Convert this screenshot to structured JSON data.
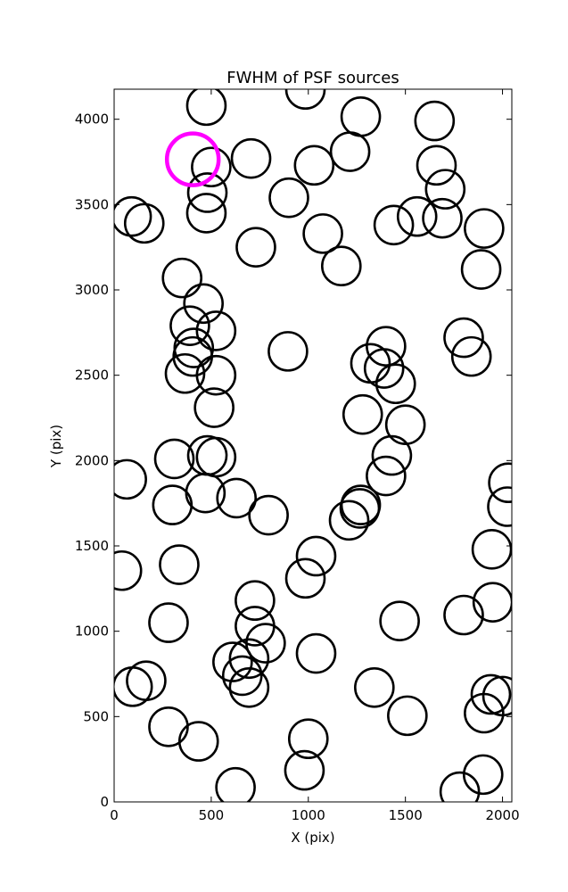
{
  "chart_data": {
    "type": "scatter",
    "title": "FWHM of PSF sources",
    "xlabel": "X (pix)",
    "ylabel": "Y (pix)",
    "xlim": [
      0,
      2048
    ],
    "ylim": [
      0,
      4176
    ],
    "xticks": [
      0,
      500,
      1000,
      1500,
      2000
    ],
    "yticks": [
      0,
      500,
      1000,
      1500,
      2000,
      2500,
      3000,
      3500,
      4000
    ],
    "grid": false,
    "marker": "circle",
    "colors": {
      "normal": "#000000",
      "highlight": "#ff00ff"
    },
    "highlight": {
      "x": 405,
      "y": 3765
    },
    "points": [
      {
        "x": 475,
        "y": 4080
      },
      {
        "x": 985,
        "y": 4175
      },
      {
        "x": 1270,
        "y": 4015
      },
      {
        "x": 1650,
        "y": 3990
      },
      {
        "x": 705,
        "y": 3770
      },
      {
        "x": 500,
        "y": 3720
      },
      {
        "x": 1030,
        "y": 3730
      },
      {
        "x": 1215,
        "y": 3810
      },
      {
        "x": 1660,
        "y": 3730
      },
      {
        "x": 480,
        "y": 3570
      },
      {
        "x": 475,
        "y": 3450
      },
      {
        "x": 900,
        "y": 3540
      },
      {
        "x": 90,
        "y": 3430
      },
      {
        "x": 155,
        "y": 3390
      },
      {
        "x": 1075,
        "y": 3330
      },
      {
        "x": 1440,
        "y": 3380
      },
      {
        "x": 1560,
        "y": 3430
      },
      {
        "x": 1705,
        "y": 3590
      },
      {
        "x": 1690,
        "y": 3420
      },
      {
        "x": 1905,
        "y": 3360
      },
      {
        "x": 730,
        "y": 3250
      },
      {
        "x": 1170,
        "y": 3140
      },
      {
        "x": 1890,
        "y": 3120
      },
      {
        "x": 350,
        "y": 3070
      },
      {
        "x": 460,
        "y": 2920
      },
      {
        "x": 390,
        "y": 2790
      },
      {
        "x": 525,
        "y": 2760
      },
      {
        "x": 410,
        "y": 2660
      },
      {
        "x": 405,
        "y": 2610
      },
      {
        "x": 365,
        "y": 2510
      },
      {
        "x": 525,
        "y": 2500
      },
      {
        "x": 895,
        "y": 2640
      },
      {
        "x": 1400,
        "y": 2670
      },
      {
        "x": 1320,
        "y": 2570
      },
      {
        "x": 1390,
        "y": 2540
      },
      {
        "x": 1450,
        "y": 2450
      },
      {
        "x": 1800,
        "y": 2720
      },
      {
        "x": 1840,
        "y": 2610
      },
      {
        "x": 515,
        "y": 2310
      },
      {
        "x": 1280,
        "y": 2270
      },
      {
        "x": 1500,
        "y": 2210
      },
      {
        "x": 310,
        "y": 2010
      },
      {
        "x": 480,
        "y": 2030
      },
      {
        "x": 525,
        "y": 2020
      },
      {
        "x": 1430,
        "y": 2030
      },
      {
        "x": 1400,
        "y": 1910
      },
      {
        "x": 65,
        "y": 1890
      },
      {
        "x": 2030,
        "y": 1870
      },
      {
        "x": 300,
        "y": 1740
      },
      {
        "x": 470,
        "y": 1810
      },
      {
        "x": 630,
        "y": 1780
      },
      {
        "x": 795,
        "y": 1680
      },
      {
        "x": 1270,
        "y": 1740
      },
      {
        "x": 1265,
        "y": 1720
      },
      {
        "x": 1210,
        "y": 1650
      },
      {
        "x": 2025,
        "y": 1730
      },
      {
        "x": 40,
        "y": 1355
      },
      {
        "x": 335,
        "y": 1390
      },
      {
        "x": 1040,
        "y": 1440
      },
      {
        "x": 985,
        "y": 1310
      },
      {
        "x": 1945,
        "y": 1480
      },
      {
        "x": 280,
        "y": 1050
      },
      {
        "x": 725,
        "y": 1180
      },
      {
        "x": 725,
        "y": 1030
      },
      {
        "x": 780,
        "y": 930
      },
      {
        "x": 1470,
        "y": 1060
      },
      {
        "x": 1800,
        "y": 1095
      },
      {
        "x": 1950,
        "y": 1170
      },
      {
        "x": 695,
        "y": 840
      },
      {
        "x": 610,
        "y": 820
      },
      {
        "x": 1040,
        "y": 870
      },
      {
        "x": 95,
        "y": 675
      },
      {
        "x": 165,
        "y": 710
      },
      {
        "x": 660,
        "y": 740
      },
      {
        "x": 695,
        "y": 670
      },
      {
        "x": 1340,
        "y": 670
      },
      {
        "x": 1940,
        "y": 630
      },
      {
        "x": 2000,
        "y": 620
      },
      {
        "x": 1905,
        "y": 520
      },
      {
        "x": 1510,
        "y": 505
      },
      {
        "x": 280,
        "y": 440
      },
      {
        "x": 435,
        "y": 355
      },
      {
        "x": 1000,
        "y": 370
      },
      {
        "x": 980,
        "y": 185
      },
      {
        "x": 625,
        "y": 85
      },
      {
        "x": 1780,
        "y": 60
      },
      {
        "x": 1900,
        "y": 160
      }
    ]
  }
}
